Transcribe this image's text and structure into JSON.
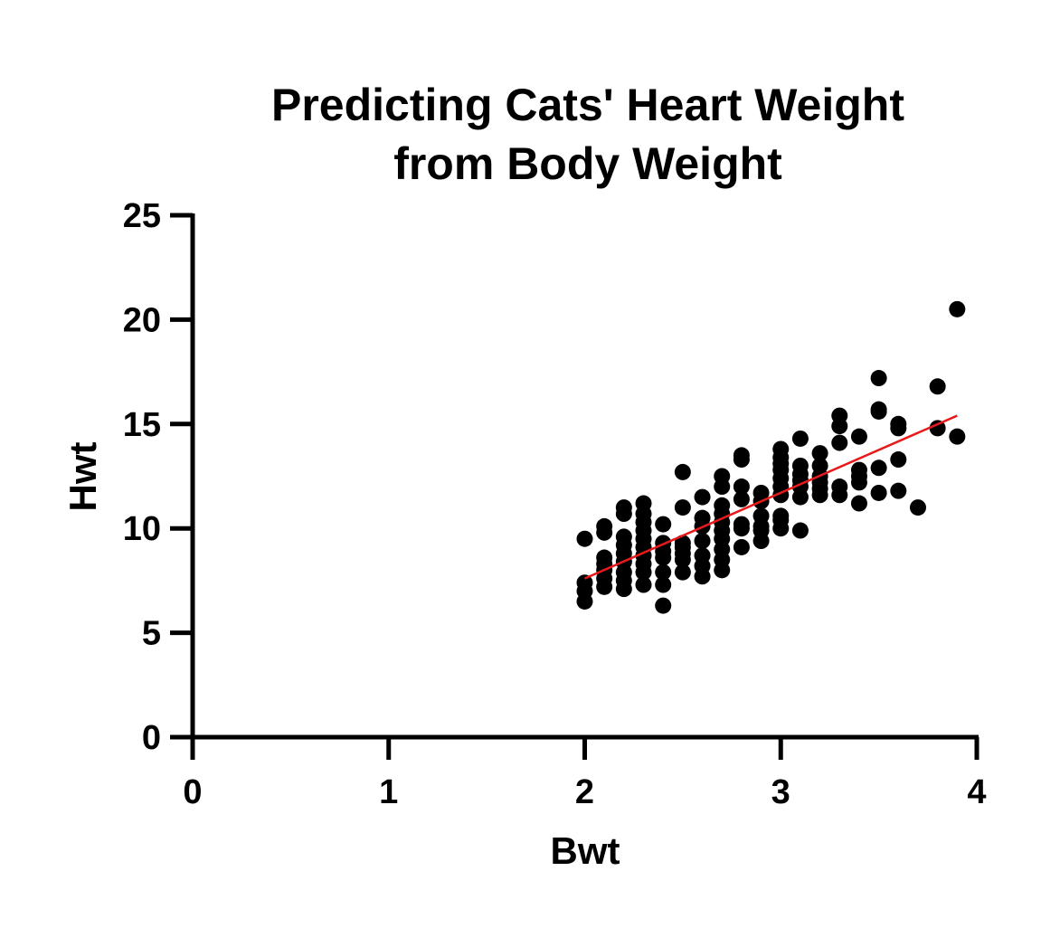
{
  "chart_data": {
    "type": "scatter",
    "title_lines": [
      "Predicting Cats' Heart Weight",
      "from Body Weight"
    ],
    "xlabel": "Bwt",
    "ylabel": "Hwt",
    "xlim": [
      0,
      4
    ],
    "ylim": [
      0,
      25
    ],
    "xticks": [
      "0",
      "1",
      "2",
      "3",
      "4"
    ],
    "yticks": [
      "0",
      "5",
      "10",
      "15",
      "20",
      "25"
    ],
    "grid": false,
    "point_color": "#000000",
    "fit_line_color": "#e8191a",
    "fit_line": {
      "x": [
        2.0,
        3.9
      ],
      "y": [
        7.6,
        15.4
      ]
    },
    "points": [
      [
        2.0,
        6.5
      ],
      [
        2.0,
        7.0
      ],
      [
        2.0,
        7.4
      ],
      [
        2.0,
        9.5
      ],
      [
        2.1,
        7.2
      ],
      [
        2.1,
        7.6
      ],
      [
        2.1,
        8.0
      ],
      [
        2.1,
        8.3
      ],
      [
        2.1,
        8.6
      ],
      [
        2.1,
        9.8
      ],
      [
        2.1,
        10.1
      ],
      [
        2.2,
        7.1
      ],
      [
        2.2,
        7.5
      ],
      [
        2.2,
        7.9
      ],
      [
        2.2,
        8.4
      ],
      [
        2.2,
        8.8
      ],
      [
        2.2,
        9.2
      ],
      [
        2.2,
        9.6
      ],
      [
        2.2,
        10.7
      ],
      [
        2.2,
        11.0
      ],
      [
        2.3,
        7.3
      ],
      [
        2.3,
        7.9
      ],
      [
        2.3,
        8.3
      ],
      [
        2.3,
        8.7
      ],
      [
        2.3,
        9.1
      ],
      [
        2.3,
        9.5
      ],
      [
        2.3,
        9.9
      ],
      [
        2.3,
        10.3
      ],
      [
        2.3,
        10.7
      ],
      [
        2.3,
        11.2
      ],
      [
        2.4,
        6.3
      ],
      [
        2.4,
        7.3
      ],
      [
        2.4,
        7.9
      ],
      [
        2.4,
        8.6
      ],
      [
        2.4,
        8.9
      ],
      [
        2.4,
        9.3
      ],
      [
        2.4,
        10.2
      ],
      [
        2.5,
        7.9
      ],
      [
        2.5,
        8.5
      ],
      [
        2.5,
        8.8
      ],
      [
        2.5,
        9.1
      ],
      [
        2.5,
        9.3
      ],
      [
        2.5,
        11.0
      ],
      [
        2.5,
        12.7
      ],
      [
        2.6,
        7.7
      ],
      [
        2.6,
        8.2
      ],
      [
        2.6,
        8.7
      ],
      [
        2.6,
        9.4
      ],
      [
        2.6,
        10.1
      ],
      [
        2.6,
        10.5
      ],
      [
        2.6,
        11.5
      ],
      [
        2.7,
        8.0
      ],
      [
        2.7,
        8.5
      ],
      [
        2.7,
        9.0
      ],
      [
        2.7,
        9.5
      ],
      [
        2.7,
        9.9
      ],
      [
        2.7,
        10.3
      ],
      [
        2.7,
        10.7
      ],
      [
        2.7,
        11.1
      ],
      [
        2.7,
        12.0
      ],
      [
        2.7,
        12.5
      ],
      [
        2.8,
        9.1
      ],
      [
        2.8,
        10.0
      ],
      [
        2.8,
        10.2
      ],
      [
        2.8,
        11.4
      ],
      [
        2.8,
        12.0
      ],
      [
        2.8,
        13.3
      ],
      [
        2.8,
        13.5
      ],
      [
        2.9,
        9.4
      ],
      [
        2.9,
        9.9
      ],
      [
        2.9,
        10.1
      ],
      [
        2.9,
        10.6
      ],
      [
        2.9,
        11.3
      ],
      [
        2.9,
        11.7
      ],
      [
        3.0,
        10.0
      ],
      [
        3.0,
        10.4
      ],
      [
        3.0,
        10.6
      ],
      [
        3.0,
        11.6
      ],
      [
        3.0,
        12.0
      ],
      [
        3.0,
        12.4
      ],
      [
        3.0,
        12.8
      ],
      [
        3.0,
        13.1
      ],
      [
        3.0,
        13.4
      ],
      [
        3.0,
        13.8
      ],
      [
        3.1,
        9.9
      ],
      [
        3.1,
        11.5
      ],
      [
        3.1,
        12.0
      ],
      [
        3.1,
        12.3
      ],
      [
        3.1,
        12.6
      ],
      [
        3.1,
        13.0
      ],
      [
        3.1,
        14.3
      ],
      [
        3.2,
        11.6
      ],
      [
        3.2,
        11.9
      ],
      [
        3.2,
        12.2
      ],
      [
        3.2,
        12.5
      ],
      [
        3.2,
        13.0
      ],
      [
        3.2,
        13.6
      ],
      [
        3.3,
        11.6
      ],
      [
        3.3,
        12.0
      ],
      [
        3.3,
        14.1
      ],
      [
        3.3,
        14.9
      ],
      [
        3.3,
        15.4
      ],
      [
        3.4,
        11.2
      ],
      [
        3.4,
        12.2
      ],
      [
        3.4,
        12.5
      ],
      [
        3.4,
        12.8
      ],
      [
        3.4,
        14.4
      ],
      [
        3.5,
        11.7
      ],
      [
        3.5,
        12.9
      ],
      [
        3.5,
        15.6
      ],
      [
        3.5,
        15.7
      ],
      [
        3.5,
        17.2
      ],
      [
        3.6,
        11.8
      ],
      [
        3.6,
        13.3
      ],
      [
        3.6,
        14.8
      ],
      [
        3.6,
        15.0
      ],
      [
        3.7,
        11.0
      ],
      [
        3.8,
        14.8
      ],
      [
        3.8,
        16.8
      ],
      [
        3.9,
        14.4
      ],
      [
        3.9,
        20.5
      ]
    ]
  }
}
